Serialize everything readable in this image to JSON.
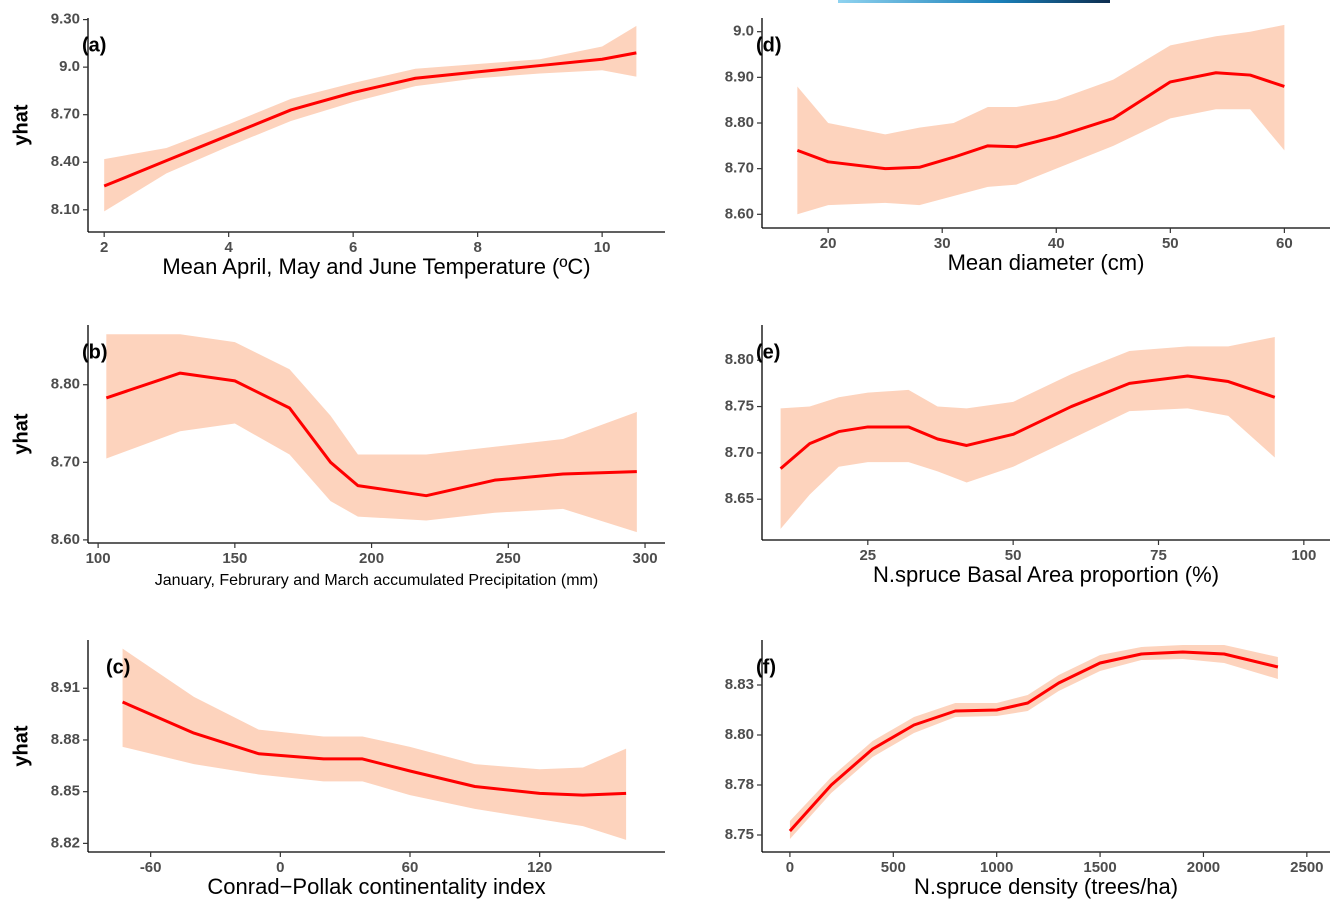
{
  "chart_data": [
    {
      "type": "line",
      "panel_label": "(a)",
      "y_label": "yhat",
      "x_label": "Mean April, May and June Temperature (ºC)",
      "xlim": [
        1.74,
        11.01
      ],
      "xticks": [
        2,
        4,
        6,
        8,
        10
      ],
      "ylim": [
        7.96,
        9.31
      ],
      "yticks": [
        {
          "value": 8.1,
          "label": "8.10"
        },
        {
          "value": 8.4,
          "label": "8.40"
        },
        {
          "value": 8.7,
          "label": "8.70"
        },
        {
          "value": 9.0,
          "label": "9.0"
        },
        {
          "value": 9.3,
          "label": "9.30"
        }
      ],
      "x": [
        2,
        3,
        4,
        5,
        6,
        7,
        8,
        9,
        10,
        10.55
      ],
      "series": [
        {
          "color": "#ff0000",
          "band_color": "#fdd3bd",
          "values": [
            8.25,
            8.41,
            8.57,
            8.73,
            8.84,
            8.93,
            8.97,
            9.01,
            9.05,
            9.09
          ],
          "lower": [
            8.09,
            8.33,
            8.5,
            8.66,
            8.78,
            8.88,
            8.93,
            8.96,
            8.98,
            8.94
          ],
          "upper": [
            8.42,
            8.49,
            8.64,
            8.8,
            8.9,
            8.99,
            9.02,
            9.05,
            9.13,
            9.26
          ]
        }
      ]
    },
    {
      "type": "line",
      "panel_label": "(b)",
      "y_label": "yhat",
      "x_label": "January, Februrary and March accumulated Precipitation (mm)",
      "xlim": [
        96.3,
        307.3
      ],
      "xticks": [
        100,
        150,
        200,
        250,
        300
      ],
      "ylim": [
        8.596,
        8.877
      ],
      "yticks": [
        {
          "value": 8.6,
          "label": "8.60"
        },
        {
          "value": 8.7,
          "label": "8.70"
        },
        {
          "value": 8.8,
          "label": "8.80"
        }
      ],
      "x": [
        103,
        130,
        150,
        170,
        185,
        195,
        220,
        245,
        270,
        297
      ],
      "series": [
        {
          "color": "#ff0000",
          "band_color": "#fdd3bd",
          "values": [
            8.783,
            8.815,
            8.805,
            8.77,
            8.7,
            8.67,
            8.657,
            8.677,
            8.685,
            8.688
          ],
          "lower": [
            8.705,
            8.74,
            8.75,
            8.71,
            8.65,
            8.63,
            8.625,
            8.635,
            8.64,
            8.61
          ],
          "upper": [
            8.865,
            8.865,
            8.855,
            8.82,
            8.76,
            8.71,
            8.71,
            8.72,
            8.73,
            8.765
          ]
        }
      ]
    },
    {
      "type": "line",
      "panel_label": "(c)",
      "y_label": "yhat",
      "x_label": "Conrad−Pollak continentality index",
      "xlim": [
        -89,
        178
      ],
      "xticks": [
        -60,
        0,
        60,
        120
      ],
      "ylim": [
        8.815,
        8.938
      ],
      "yticks": [
        8.82,
        8.85,
        8.88,
        8.91
      ],
      "x": [
        -73,
        -40,
        -10,
        20,
        38,
        60,
        90,
        120,
        140,
        160
      ],
      "series": [
        {
          "color": "#ff0000",
          "band_color": "#fdd3bd",
          "values": [
            8.902,
            8.884,
            8.872,
            8.869,
            8.869,
            8.862,
            8.853,
            8.849,
            8.848,
            8.849
          ],
          "lower": [
            8.876,
            8.866,
            8.86,
            8.856,
            8.856,
            8.848,
            8.84,
            8.834,
            8.83,
            8.822
          ],
          "upper": [
            8.933,
            8.905,
            8.886,
            8.882,
            8.882,
            8.876,
            8.866,
            8.863,
            8.864,
            8.875
          ]
        }
      ]
    },
    {
      "type": "line",
      "panel_label": "(d)",
      "x_label": "Mean diameter (cm)",
      "xlim": [
        14.2,
        64
      ],
      "xticks": [
        20,
        30,
        40,
        50,
        60
      ],
      "ylim": [
        8.57,
        9.03
      ],
      "yticks": [
        {
          "value": 8.6,
          "label": "8.60"
        },
        {
          "value": 8.7,
          "label": "8.70"
        },
        {
          "value": 8.8,
          "label": "8.80"
        },
        {
          "value": 8.9,
          "label": "8.90"
        },
        {
          "value": 9.0,
          "label": "9.0"
        }
      ],
      "x": [
        17.3,
        20,
        25,
        28,
        31,
        34,
        36.5,
        40,
        45,
        50,
        54,
        57,
        60
      ],
      "series": [
        {
          "color": "#ff0000",
          "band_color": "#fdd3bd",
          "values": [
            8.74,
            8.715,
            8.7,
            8.703,
            8.725,
            8.75,
            8.748,
            8.77,
            8.81,
            8.89,
            8.91,
            8.905,
            8.88
          ],
          "lower": [
            8.6,
            8.62,
            8.625,
            8.62,
            8.64,
            8.66,
            8.665,
            8.7,
            8.75,
            8.81,
            8.83,
            8.83,
            8.74
          ],
          "upper": [
            8.88,
            8.8,
            8.775,
            8.79,
            8.8,
            8.835,
            8.835,
            8.85,
            8.895,
            8.97,
            8.99,
            9.0,
            9.015
          ]
        }
      ]
    },
    {
      "type": "line",
      "panel_label": "(e)",
      "x_label": "N.spruce Basal Area proportion (%)",
      "xlim": [
        6.8,
        104.5
      ],
      "xticks": [
        25,
        50,
        75,
        100
      ],
      "ylim": [
        8.606,
        8.838
      ],
      "yticks": [
        8.65,
        {
          "value": 8.7,
          "label": "8.70"
        },
        8.75,
        {
          "value": 8.8,
          "label": "8.80"
        }
      ],
      "x": [
        10,
        15,
        20,
        25,
        32,
        37,
        42,
        50,
        60,
        70,
        80,
        87,
        95
      ],
      "series": [
        {
          "color": "#ff0000",
          "band_color": "#fdd3bd",
          "values": [
            8.683,
            8.71,
            8.723,
            8.728,
            8.728,
            8.715,
            8.708,
            8.72,
            8.75,
            8.775,
            8.783,
            8.777,
            8.76
          ],
          "lower": [
            8.618,
            8.655,
            8.685,
            8.69,
            8.69,
            8.68,
            8.668,
            8.685,
            8.715,
            8.745,
            8.748,
            8.74,
            8.695
          ],
          "upper": [
            8.748,
            8.75,
            8.76,
            8.765,
            8.768,
            8.75,
            8.748,
            8.755,
            8.785,
            8.81,
            8.815,
            8.815,
            8.825
          ]
        }
      ]
    },
    {
      "type": "line",
      "panel_label": "(f)",
      "x_label": "N.spruce density (trees/ha)",
      "xlim": [
        -135,
        2612
      ],
      "xticks": [
        0,
        500,
        1000,
        1500,
        2000,
        2500
      ],
      "ylim": [
        8.7415,
        8.8475
      ],
      "yticks": [
        8.75,
        {
          "value": 8.775,
          "label": "8.78"
        },
        {
          "value": 8.8,
          "label": "8.80"
        },
        {
          "value": 8.825,
          "label": "8.83"
        }
      ],
      "x": [
        0,
        200,
        400,
        600,
        800,
        1000,
        1150,
        1300,
        1500,
        1700,
        1900,
        2100,
        2360
      ],
      "series": [
        {
          "color": "#ff0000",
          "band_color": "#fdd3bd",
          "values": [
            8.752,
            8.775,
            8.793,
            8.805,
            8.812,
            8.8125,
            8.816,
            8.826,
            8.836,
            8.8405,
            8.8415,
            8.8405,
            8.834
          ],
          "lower": [
            8.748,
            8.771,
            8.789,
            8.801,
            8.809,
            8.8095,
            8.812,
            8.822,
            8.832,
            8.8375,
            8.838,
            8.836,
            8.828
          ],
          "upper": [
            8.757,
            8.779,
            8.797,
            8.809,
            8.816,
            8.816,
            8.82,
            8.83,
            8.84,
            8.844,
            8.845,
            8.845,
            8.839
          ]
        }
      ]
    }
  ]
}
